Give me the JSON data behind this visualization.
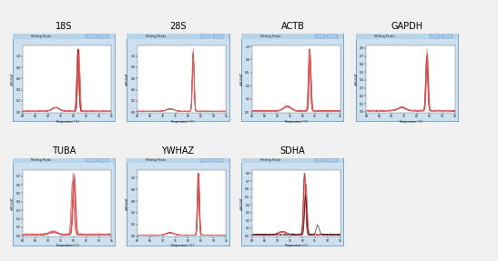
{
  "titles": [
    "18S",
    "28S",
    "ACTB",
    "GAPDH",
    "TUBA",
    "YWHAZ",
    "SDHA"
  ],
  "layout": {
    "figsize": [
      5.47,
      2.87
    ],
    "dpi": 100
  },
  "panel_bg": "#cce0f0",
  "panel_inner_bg": "#ffffff",
  "outer_bg": "#f0f0f0",
  "title_fontsize": 7,
  "curve_color_dark": "#bb0000",
  "curve_color_mid": "#cc3333",
  "curve_color_light": "#dd7777",
  "curve_color_black": "#111111",
  "header_bg": "#b8d4ea"
}
